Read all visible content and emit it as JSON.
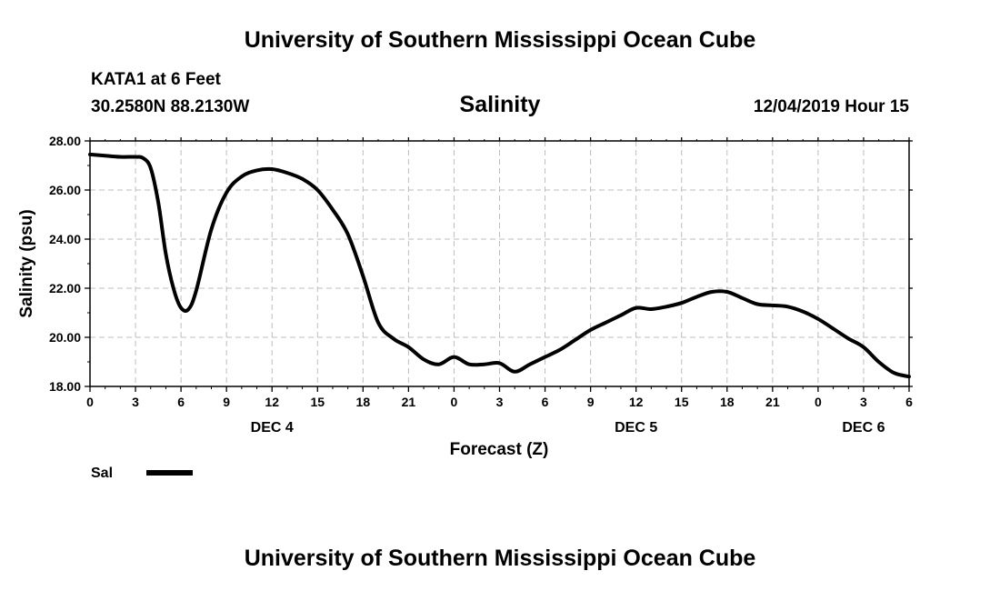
{
  "page": {
    "top_title": "University of Southern Mississippi Ocean Cube",
    "bottom_title": "University of Southern Mississippi Ocean Cube",
    "station": "KATA1 at 6 Feet",
    "coords": "30.2580N 88.2130W",
    "variable": "Salinity",
    "run": "12/04/2019 Hour 15"
  },
  "chart_data": {
    "type": "line",
    "title": "Salinity",
    "xlabel": "Forecast (Z)",
    "ylabel": "Salinity (psu)",
    "xlim": [
      0,
      54
    ],
    "ylim": [
      18,
      28
    ],
    "grid": true,
    "ytick_values": [
      18,
      20,
      22,
      24,
      26,
      28
    ],
    "ytick_labels": [
      "18.00",
      "20.00",
      "22.00",
      "24.00",
      "26.00",
      "28.00"
    ],
    "xtick_values": [
      0,
      3,
      6,
      9,
      12,
      15,
      18,
      21,
      24,
      27,
      30,
      33,
      36,
      39,
      42,
      45,
      48,
      51,
      54
    ],
    "xtick_labels": [
      "0",
      "3",
      "6",
      "9",
      "12",
      "15",
      "18",
      "21",
      "0",
      "3",
      "6",
      "9",
      "12",
      "15",
      "18",
      "21",
      "0",
      "3",
      "6"
    ],
    "day_labels": [
      {
        "x": 12,
        "label": "DEC 4"
      },
      {
        "x": 36,
        "label": "DEC 5"
      },
      {
        "x": 51,
        "label": "DEC 6"
      }
    ],
    "legend": {
      "label": "Sal",
      "position": "bottom-left"
    },
    "series": [
      {
        "name": "Sal",
        "color": "#000000",
        "x": [
          0,
          1,
          2,
          3,
          3.5,
          4,
          4.5,
          5,
          5.5,
          6,
          6.5,
          7,
          8,
          9,
          10,
          11,
          12,
          13,
          14,
          15,
          16,
          17,
          18,
          19,
          20,
          21,
          22,
          23,
          24,
          25,
          26,
          27,
          28,
          29,
          30,
          31,
          32,
          33,
          34,
          35,
          36,
          37,
          38,
          39,
          40,
          41,
          42,
          43,
          44,
          45,
          46,
          47,
          48,
          49,
          50,
          51,
          52,
          53,
          54
        ],
        "values": [
          27.45,
          27.4,
          27.35,
          27.35,
          27.3,
          26.9,
          25.5,
          23.4,
          22.0,
          21.2,
          21.15,
          21.9,
          24.4,
          25.9,
          26.55,
          26.8,
          26.85,
          26.7,
          26.45,
          26.0,
          25.2,
          24.2,
          22.5,
          20.6,
          19.95,
          19.6,
          19.1,
          18.9,
          19.2,
          18.9,
          18.9,
          18.95,
          18.6,
          18.9,
          19.2,
          19.5,
          19.9,
          20.3,
          20.6,
          20.9,
          21.2,
          21.15,
          21.25,
          21.4,
          21.65,
          21.85,
          21.85,
          21.6,
          21.35,
          21.3,
          21.25,
          21.05,
          20.75,
          20.35,
          19.95,
          19.6,
          19.0,
          18.55,
          18.4
        ]
      }
    ]
  }
}
